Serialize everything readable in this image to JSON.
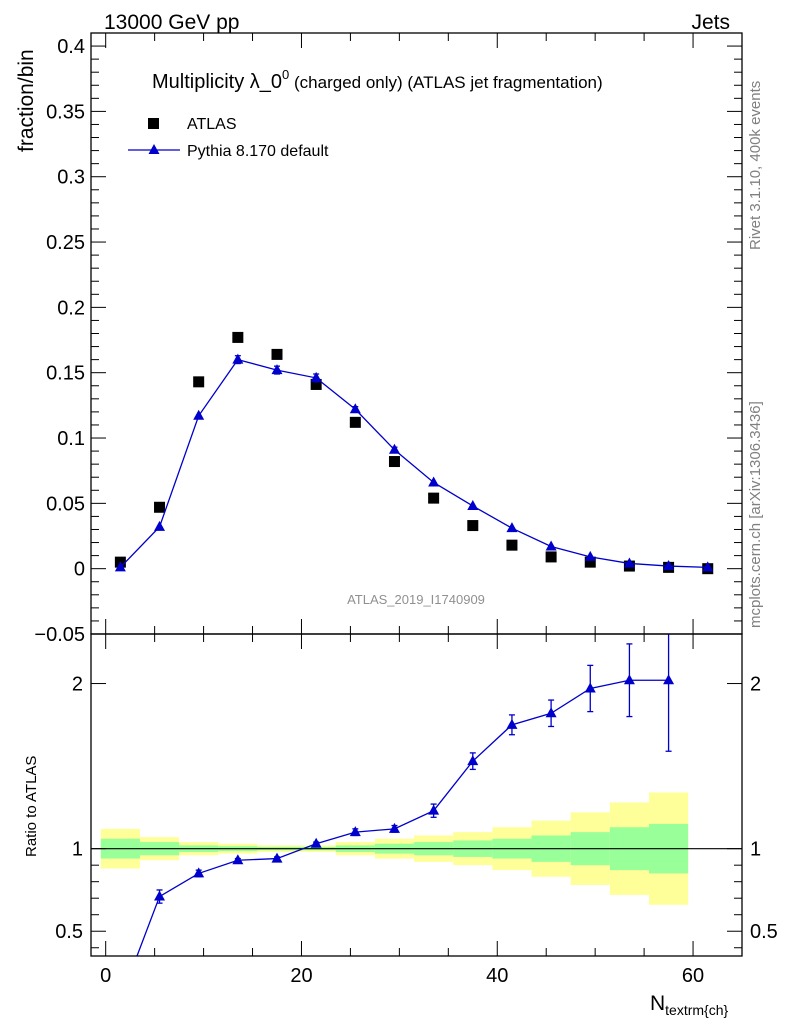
{
  "header": {
    "left": "13000 GeV pp",
    "right": "Jets"
  },
  "side_labels": {
    "top": "Rivet 3.1.10,  400k events",
    "bottom": "mcplots.cern.ch [arXiv:1306.3436]"
  },
  "colors": {
    "data": "#000000",
    "mc": "#0000cc",
    "band_inner": "#99ff99",
    "band_outer": "#ffff99"
  },
  "chart_data": [
    {
      "type": "scatter",
      "title_main": "Multiplicity λ_0",
      "title_sup": "0",
      "title_rest": " (charged only) (ATLAS jet fragmentation)",
      "ylabel": "fraction/bin",
      "watermark": "ATLAS_2019_I1740909",
      "xlim": [
        -1.5,
        65
      ],
      "ylim": [
        -0.05,
        0.41
      ],
      "yticks": [
        {
          "v": -0.05,
          "label": "−0.05"
        },
        {
          "v": 0,
          "label": "0"
        },
        {
          "v": 0.05,
          "label": "0.05"
        },
        {
          "v": 0.1,
          "label": "0.1"
        },
        {
          "v": 0.15,
          "label": "0.15"
        },
        {
          "v": 0.2,
          "label": "0.2"
        },
        {
          "v": 0.25,
          "label": "0.25"
        },
        {
          "v": 0.3,
          "label": "0.3"
        },
        {
          "v": 0.35,
          "label": "0.35"
        },
        {
          "v": 0.4,
          "label": "0.4"
        }
      ],
      "legend": {
        "data_label": "ATLAS",
        "mc_label": "Pythia 8.170 default",
        "position": "top-left"
      },
      "x": [
        1.5,
        5.5,
        9.5,
        13.5,
        17.5,
        21.5,
        25.5,
        29.5,
        33.5,
        37.5,
        41.5,
        45.5,
        49.5,
        53.5,
        57.5,
        61.5
      ],
      "series": [
        {
          "name": "ATLAS",
          "values": [
            0.005,
            0.047,
            0.143,
            0.177,
            0.164,
            0.141,
            0.112,
            0.082,
            0.054,
            0.033,
            0.018,
            0.009,
            0.005,
            0.002,
            0.001,
            0.0
          ]
        },
        {
          "name": "Pythia 8.170 default",
          "values": [
            0.001,
            0.032,
            0.117,
            0.16,
            0.152,
            0.146,
            0.122,
            0.091,
            0.066,
            0.048,
            0.031,
            0.017,
            0.009,
            0.004,
            0.002,
            0.001
          ],
          "errors": [
            0.0,
            0.0,
            0.0,
            0.003,
            0.003,
            0.003,
            0.002,
            0.002,
            0.0,
            0.0,
            0.0,
            0.0,
            0.0,
            0.0,
            0.0,
            0.0
          ]
        }
      ]
    },
    {
      "type": "line",
      "ylabel": "Ratio to ATLAS",
      "xlabel": "N",
      "xlabel_sub": "textrm{ch}",
      "xlim": [
        -1.5,
        65
      ],
      "ylim": [
        0.35,
        2.3
      ],
      "xticks": [
        0,
        20,
        40,
        60
      ],
      "yticks": [
        {
          "v": 0.5,
          "label": "0.5"
        },
        {
          "v": 1,
          "label": "1"
        },
        {
          "v": 2,
          "label": "2"
        }
      ],
      "bin_edges": [
        -0.5,
        3.5,
        7.5,
        11.5,
        15.5,
        19.5,
        23.5,
        27.5,
        31.5,
        35.5,
        39.5,
        43.5,
        47.5,
        51.5,
        55.5,
        59.5
      ],
      "band_inner": [
        {
          "lo": 0.94,
          "hi": 1.06
        },
        {
          "lo": 0.96,
          "hi": 1.04
        },
        {
          "lo": 0.98,
          "hi": 1.02
        },
        {
          "lo": 0.985,
          "hi": 1.015
        },
        {
          "lo": 0.99,
          "hi": 1.01
        },
        {
          "lo": 0.99,
          "hi": 1.01
        },
        {
          "lo": 0.98,
          "hi": 1.02
        },
        {
          "lo": 0.97,
          "hi": 1.03
        },
        {
          "lo": 0.96,
          "hi": 1.04
        },
        {
          "lo": 0.95,
          "hi": 1.05
        },
        {
          "lo": 0.94,
          "hi": 1.06
        },
        {
          "lo": 0.92,
          "hi": 1.08
        },
        {
          "lo": 0.9,
          "hi": 1.1
        },
        {
          "lo": 0.87,
          "hi": 1.13
        },
        {
          "lo": 0.85,
          "hi": 1.15
        }
      ],
      "band_outer": [
        {
          "lo": 0.88,
          "hi": 1.12
        },
        {
          "lo": 0.93,
          "hi": 1.07
        },
        {
          "lo": 0.96,
          "hi": 1.04
        },
        {
          "lo": 0.97,
          "hi": 1.03
        },
        {
          "lo": 0.98,
          "hi": 1.02
        },
        {
          "lo": 0.98,
          "hi": 1.02
        },
        {
          "lo": 0.96,
          "hi": 1.04
        },
        {
          "lo": 0.94,
          "hi": 1.06
        },
        {
          "lo": 0.92,
          "hi": 1.08
        },
        {
          "lo": 0.9,
          "hi": 1.1
        },
        {
          "lo": 0.87,
          "hi": 1.13
        },
        {
          "lo": 0.83,
          "hi": 1.17
        },
        {
          "lo": 0.78,
          "hi": 1.22
        },
        {
          "lo": 0.72,
          "hi": 1.28
        },
        {
          "lo": 0.66,
          "hi": 1.34
        }
      ],
      "series": [
        {
          "name": "Pythia 8.170 default",
          "x": [
            3.2,
            5.5,
            9.5,
            13.5,
            17.5,
            21.5,
            25.5,
            29.5,
            33.5,
            37.5,
            41.5,
            45.5,
            49.5,
            53.5,
            57.5
          ],
          "values": [
            0.35,
            0.71,
            0.85,
            0.93,
            0.94,
            1.03,
            1.1,
            1.12,
            1.23,
            1.53,
            1.75,
            1.82,
            1.97,
            2.02,
            2.02
          ],
          "errors": [
            0.0,
            0.04,
            0.02,
            0.01,
            0.01,
            0.01,
            0.02,
            0.02,
            0.04,
            0.05,
            0.06,
            0.08,
            0.14,
            0.22,
            0.43
          ]
        }
      ]
    }
  ]
}
